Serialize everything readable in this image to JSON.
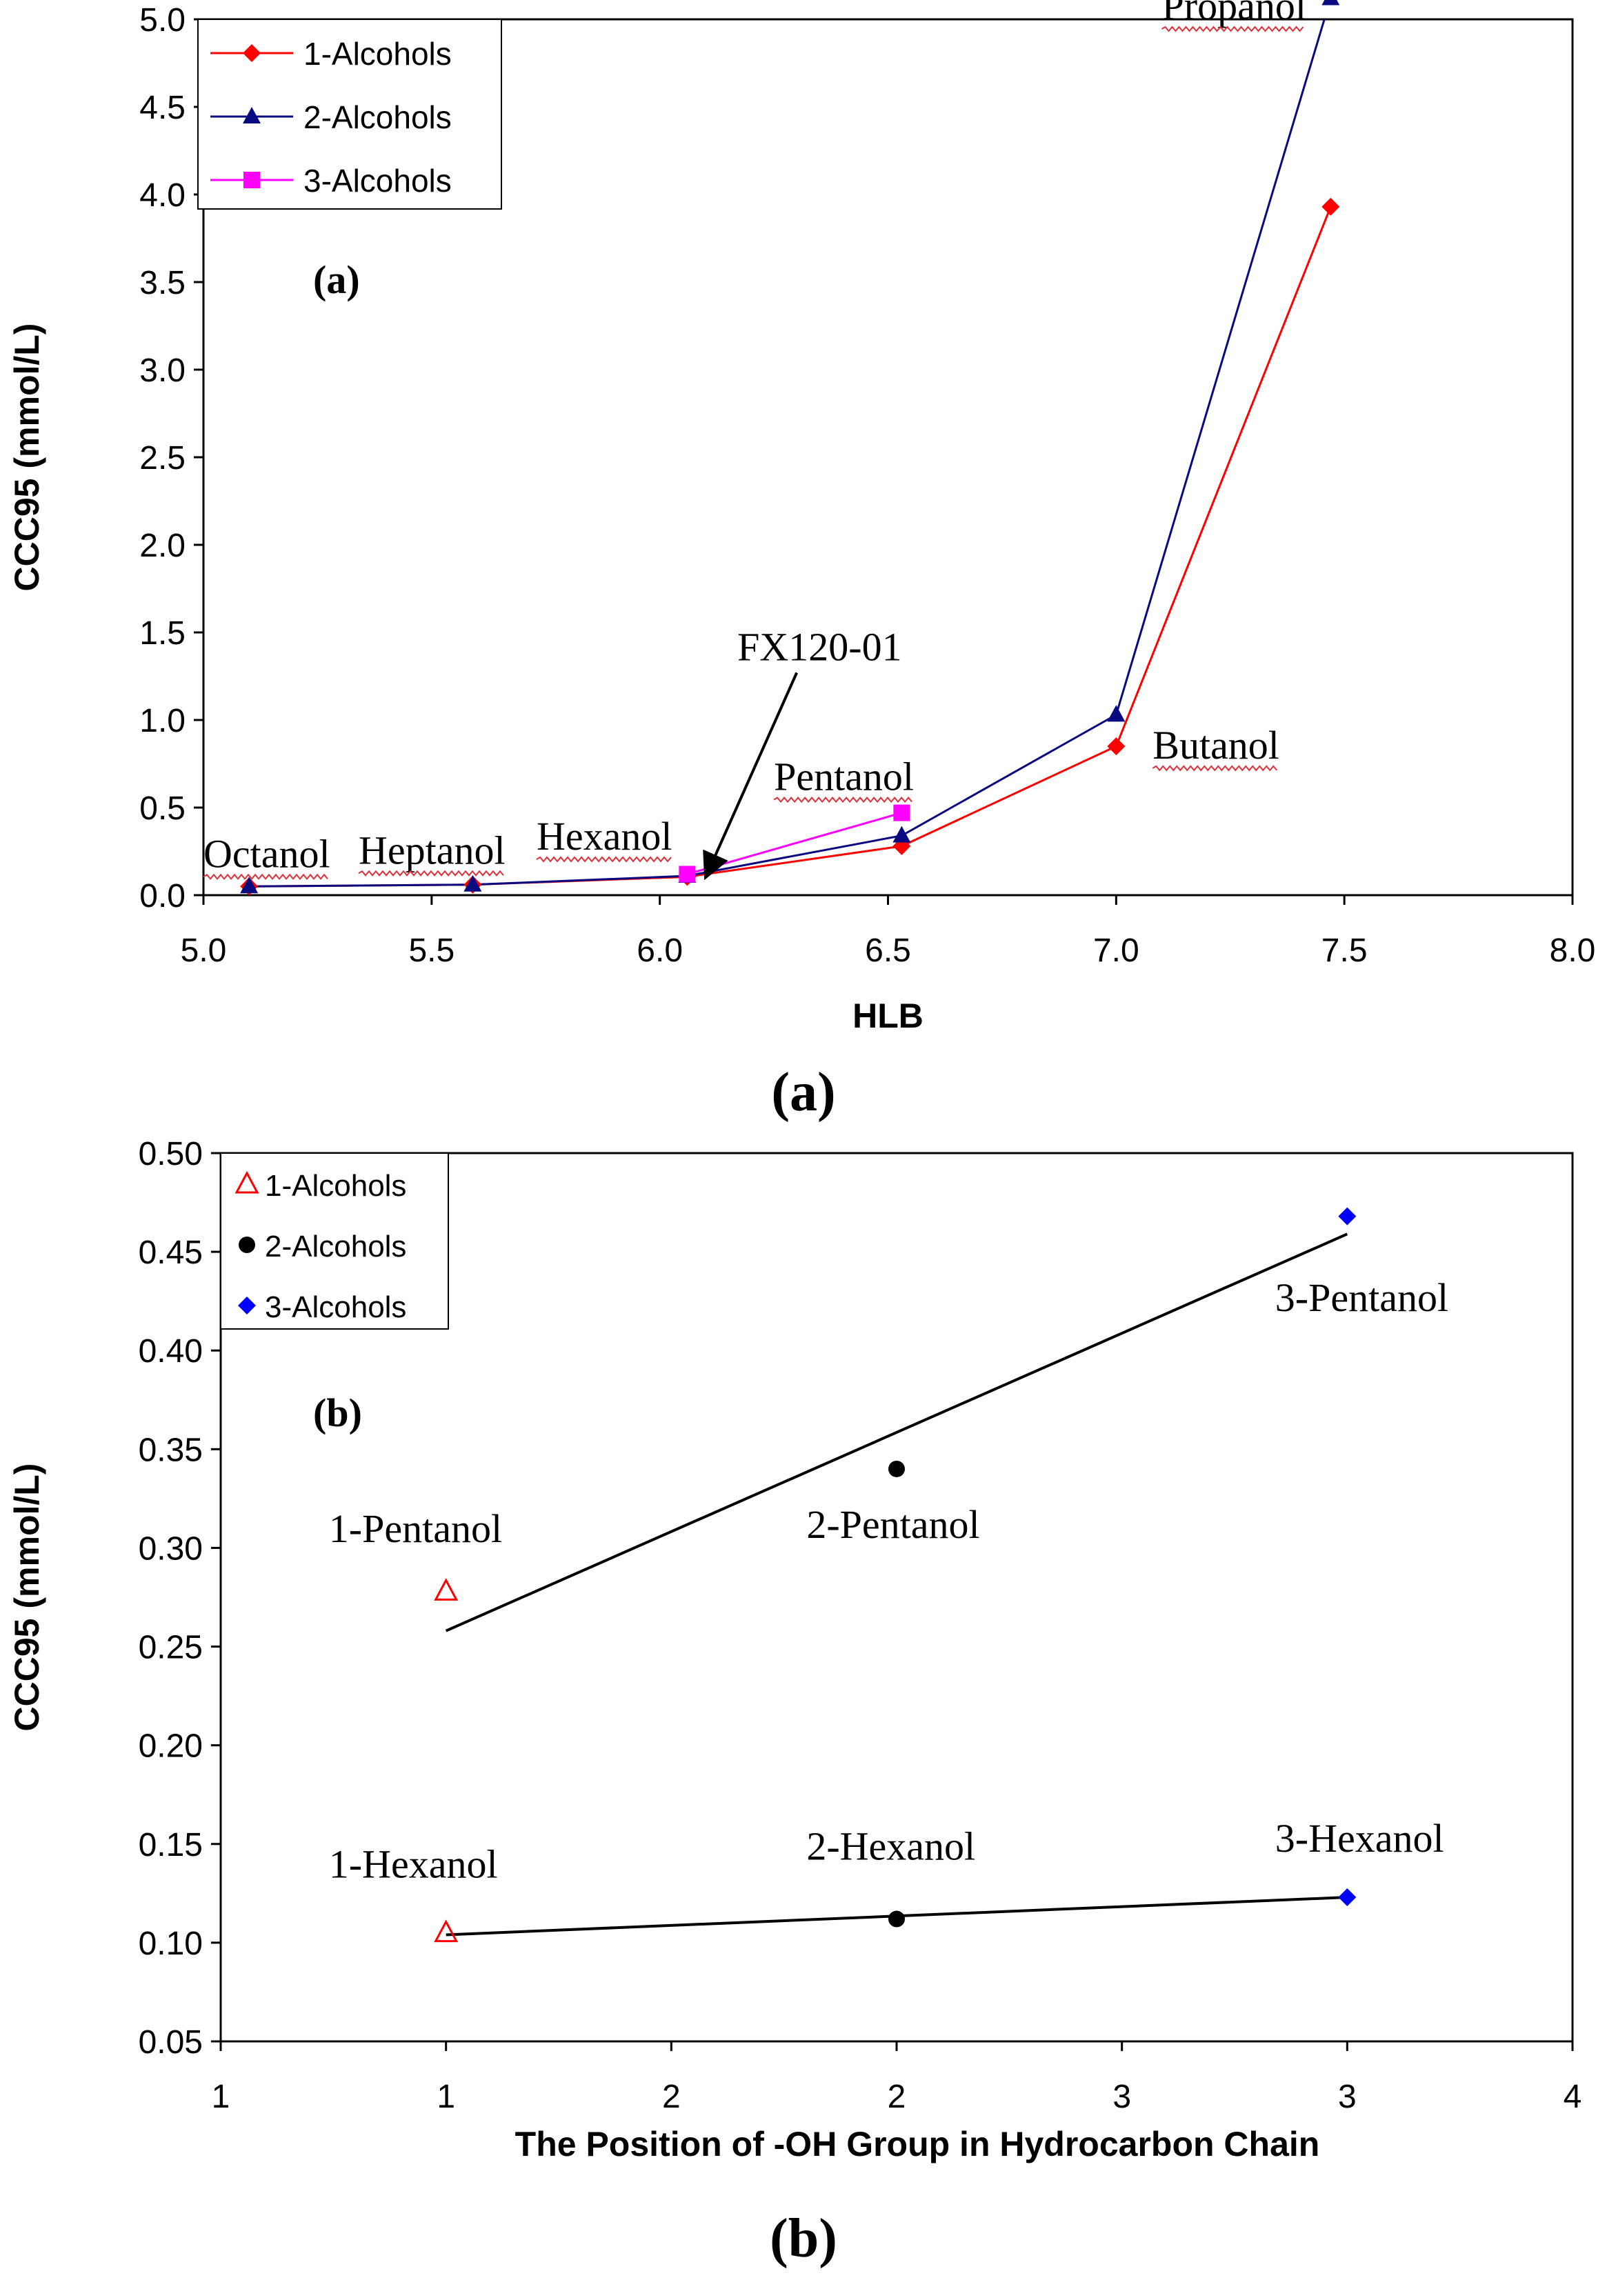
{
  "chart_data": [
    {
      "type": "line",
      "panel_caption": "(a)",
      "inner_label": "(a)",
      "xlabel": "HLB",
      "ylabel": "CCC95 (mmol/L)",
      "xlim": [
        5.0,
        8.0
      ],
      "ylim": [
        0.0,
        5.0
      ],
      "xticks": [
        "5.0",
        "5.5",
        "6.0",
        "6.5",
        "7.0",
        "7.5",
        "8.0"
      ],
      "yticks": [
        "0.0",
        "0.5",
        "1.0",
        "1.5",
        "2.0",
        "2.5",
        "3.0",
        "3.5",
        "4.0",
        "4.5",
        "5.0"
      ],
      "legend_position": "top-left",
      "series": [
        {
          "name": "1-Alcohols",
          "color": "#ff0000",
          "marker": "diamond",
          "points": [
            [
              5.1,
              0.05
            ],
            [
              5.59,
              0.06
            ],
            [
              6.06,
              0.105
            ],
            [
              6.53,
              0.28
            ],
            [
              7.0,
              0.85
            ],
            [
              7.47,
              3.93
            ]
          ]
        },
        {
          "name": "2-Alcohols",
          "color": "#0a0a80",
          "marker": "triangle",
          "points": [
            [
              5.1,
              0.05
            ],
            [
              5.59,
              0.06
            ],
            [
              6.06,
              0.11
            ],
            [
              6.53,
              0.34
            ],
            [
              7.0,
              1.03
            ],
            [
              7.47,
              5.12
            ]
          ]
        },
        {
          "name": "3-Alcohols",
          "color": "#ff00ff",
          "marker": "square",
          "points": [
            [
              6.06,
              0.12
            ],
            [
              6.53,
              0.47
            ]
          ]
        }
      ],
      "annotations": [
        {
          "text": "Propanol",
          "x": 7.1,
          "y": 5.0,
          "underline": true
        },
        {
          "text": "Butanol",
          "x": 7.08,
          "y": 0.78,
          "underline": true
        },
        {
          "text": "Pentanol",
          "x": 6.25,
          "y": 0.6,
          "underline": true
        },
        {
          "text": "Hexanol",
          "x": 5.73,
          "y": 0.26,
          "underline": true
        },
        {
          "text": "Heptanol",
          "x": 5.34,
          "y": 0.18,
          "underline": true
        },
        {
          "text": "Octanol",
          "x": 5.0,
          "y": 0.16,
          "underline": true
        },
        {
          "text": "FX120-01",
          "x": 6.17,
          "y": 1.34,
          "underline": false
        }
      ],
      "arrow": {
        "from": [
          6.3,
          1.27
        ],
        "to": [
          6.1,
          0.1
        ]
      }
    },
    {
      "type": "scatter",
      "panel_caption": "(b)",
      "inner_label": "(b)",
      "xlabel": "The Position of -OH Group in Hydrocarbon Chain",
      "ylabel": "CCC95 (mmol/L)",
      "xlim": [
        0,
        3
      ],
      "ylim": [
        0.05,
        0.5
      ],
      "xticks": [
        "1",
        "1",
        "2",
        "2",
        "3",
        "3",
        "4"
      ],
      "yticks": [
        "0.05",
        "0.10",
        "0.15",
        "0.20",
        "0.25",
        "0.30",
        "0.35",
        "0.40",
        "0.45",
        "0.50"
      ],
      "legend_position": "top-left",
      "series": [
        {
          "name": "1-Alcohols",
          "color": "#ff0000",
          "marker": "open-triangle",
          "points": [
            [
              0.5,
              0.278
            ],
            [
              0.5,
              0.105
            ]
          ]
        },
        {
          "name": "2-Alcohols",
          "color": "#000000",
          "marker": "circle",
          "points": [
            [
              1.5,
              0.34
            ],
            [
              1.5,
              0.112
            ]
          ]
        },
        {
          "name": "3-Alcohols",
          "color": "#0000ff",
          "marker": "diamond",
          "points": [
            [
              2.5,
              0.468
            ],
            [
              2.5,
              0.123
            ]
          ]
        }
      ],
      "trendlines": [
        {
          "name": "Pentanol trend",
          "from": [
            0.5,
            0.258
          ],
          "to": [
            2.5,
            0.459
          ]
        },
        {
          "name": "Hexanol trend",
          "from": [
            0.5,
            0.104
          ],
          "to": [
            2.5,
            0.123
          ]
        }
      ],
      "annotations": [
        {
          "text": "1-Pentanol",
          "x": 0.24,
          "y": 0.303
        },
        {
          "text": "2-Pentanol",
          "x": 1.3,
          "y": 0.305
        },
        {
          "text": "3-Pentanol",
          "x": 2.34,
          "y": 0.42
        },
        {
          "text": "1-Hexanol",
          "x": 0.24,
          "y": 0.133
        },
        {
          "text": "2-Hexanol",
          "x": 1.3,
          "y": 0.142
        },
        {
          "text": "3-Hexanol",
          "x": 2.34,
          "y": 0.146
        }
      ]
    }
  ]
}
